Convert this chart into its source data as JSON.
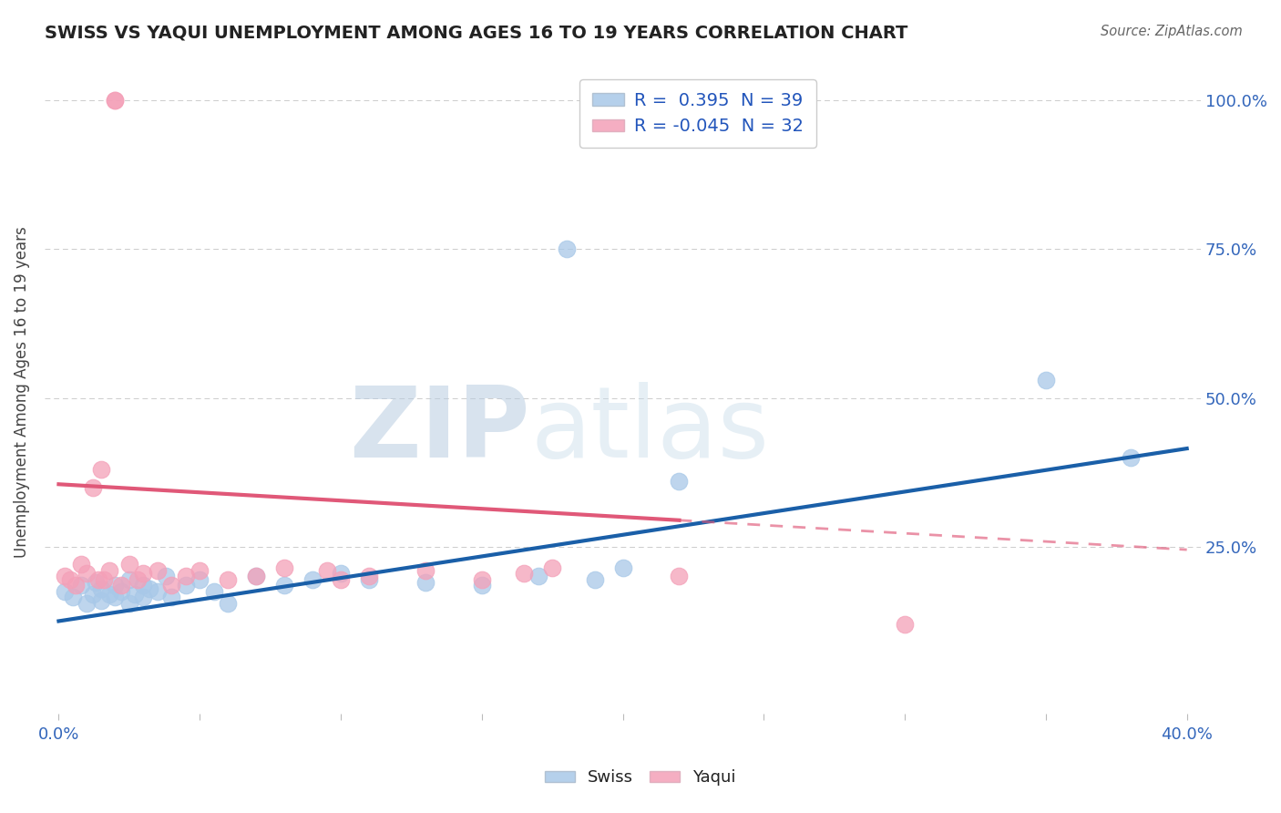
{
  "title": "SWISS VS YAQUI UNEMPLOYMENT AMONG AGES 16 TO 19 YEARS CORRELATION CHART",
  "source": "Source: ZipAtlas.com",
  "ylabel": "Unemployment Among Ages 16 to 19 years",
  "xlim": [
    -0.005,
    0.405
  ],
  "ylim": [
    -0.03,
    1.05
  ],
  "xticks": [
    0.0,
    0.05,
    0.1,
    0.15,
    0.2,
    0.25,
    0.3,
    0.35,
    0.4
  ],
  "ytick_positions": [
    0.25,
    0.5,
    0.75,
    1.0
  ],
  "ytick_labels": [
    "25.0%",
    "50.0%",
    "75.0%",
    "100.0%"
  ],
  "swiss_color": "#a8c8e8",
  "yaqui_color": "#f4a0b8",
  "swiss_line_color": "#1a5fa8",
  "yaqui_line_color": "#e05878",
  "swiss_R": 0.395,
  "swiss_N": 39,
  "yaqui_R": -0.045,
  "yaqui_N": 32,
  "swiss_x": [
    0.002,
    0.005,
    0.008,
    0.01,
    0.012,
    0.013,
    0.015,
    0.015,
    0.018,
    0.02,
    0.02,
    0.022,
    0.025,
    0.025,
    0.027,
    0.03,
    0.03,
    0.032,
    0.035,
    0.038,
    0.04,
    0.045,
    0.05,
    0.055,
    0.06,
    0.07,
    0.08,
    0.09,
    0.1,
    0.11,
    0.13,
    0.15,
    0.17,
    0.19,
    0.2,
    0.22,
    0.18,
    0.35,
    0.38
  ],
  "swiss_y": [
    0.175,
    0.165,
    0.185,
    0.155,
    0.17,
    0.19,
    0.16,
    0.18,
    0.17,
    0.165,
    0.185,
    0.175,
    0.155,
    0.195,
    0.17,
    0.165,
    0.185,
    0.18,
    0.175,
    0.2,
    0.165,
    0.185,
    0.195,
    0.175,
    0.155,
    0.2,
    0.185,
    0.195,
    0.205,
    0.195,
    0.19,
    0.185,
    0.2,
    0.195,
    0.215,
    0.36,
    0.75,
    0.53,
    0.4
  ],
  "yaqui_x": [
    0.002,
    0.004,
    0.006,
    0.008,
    0.01,
    0.012,
    0.014,
    0.015,
    0.016,
    0.018,
    0.02,
    0.02,
    0.022,
    0.025,
    0.028,
    0.03,
    0.035,
    0.04,
    0.045,
    0.05,
    0.06,
    0.07,
    0.08,
    0.095,
    0.1,
    0.11,
    0.13,
    0.15,
    0.165,
    0.175,
    0.22,
    0.3
  ],
  "yaqui_y": [
    0.2,
    0.195,
    0.185,
    0.22,
    0.205,
    0.35,
    0.195,
    0.38,
    0.195,
    0.21,
    1.0,
    1.0,
    0.185,
    0.22,
    0.195,
    0.205,
    0.21,
    0.185,
    0.2,
    0.21,
    0.195,
    0.2,
    0.215,
    0.21,
    0.195,
    0.2,
    0.21,
    0.195,
    0.205,
    0.215,
    0.2,
    0.12
  ],
  "yaqui_line_start": 0.0,
  "yaqui_line_solid_end": 0.22,
  "yaqui_line_end": 0.4,
  "swiss_line_y0": 0.125,
  "swiss_line_y1": 0.415,
  "yaqui_line_y0": 0.355,
  "yaqui_line_y1": 0.245,
  "watermark_zip": "ZIP",
  "watermark_atlas": "atlas",
  "watermark_color": "#d0dff0",
  "background_color": "#ffffff",
  "grid_color": "#cccccc",
  "tick_label_color": "#3366bb"
}
